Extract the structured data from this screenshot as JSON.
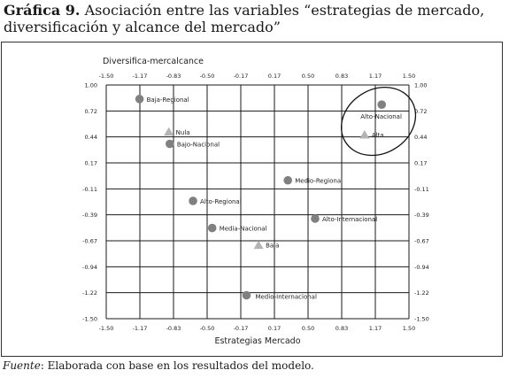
{
  "caption": {
    "prefix": "Gráfica 9.",
    "text": "Asociación entre las variables “estrategias de mercado, diversificación y alcance del mercado”"
  },
  "source": {
    "label": "Fuente",
    "text": ": Elaborada con base en los resultados del modelo."
  },
  "chart_data": {
    "type": "scatter",
    "xlabel": "Estrategias Mercado",
    "ylabel": "Diversifica-mercalcance",
    "xlim": [
      -1.5,
      1.5
    ],
    "ylim": [
      -1.5,
      1.0
    ],
    "x_ticks": [
      "-1.50",
      "-1.17",
      "-0.83",
      "-0.50",
      "-0.17",
      "0.17",
      "0.50",
      "0.83",
      "1.17",
      "1.50"
    ],
    "y_ticks": [
      "1.00",
      "0.72",
      "0.44",
      "0.17",
      "-0.11",
      "-0.39",
      "-0.67",
      "-0.94",
      "-1.22",
      "-1.50"
    ],
    "grid": true,
    "colors": {
      "circle": "#808080",
      "triangle": "#b4b4b4",
      "grid": "#1a1a1a"
    },
    "circles": [
      {
        "label": "Baja-Regional",
        "x": -1.17,
        "y": 0.85
      },
      {
        "label": "Bajo-Nacional",
        "x": -0.87,
        "y": 0.37
      },
      {
        "label": "Alto-Nacional",
        "x": 1.23,
        "y": 0.79
      },
      {
        "label": "Medio-Regional",
        "x": 0.3,
        "y": -0.02
      },
      {
        "label": "Alto-Regional",
        "x": -0.64,
        "y": -0.24
      },
      {
        "label": "Alto-Internacional",
        "x": 0.57,
        "y": -0.43
      },
      {
        "label": "Media-Nacional",
        "x": -0.45,
        "y": -0.53
      },
      {
        "label": "Medio-Internacional",
        "x": -0.11,
        "y": -1.25
      }
    ],
    "triangles": [
      {
        "label": "Nula",
        "x": -0.88,
        "y": 0.5
      },
      {
        "label": "Alta",
        "x": 1.06,
        "y": 0.47
      },
      {
        "label": "Baja",
        "x": 0.01,
        "y": -0.71
      }
    ],
    "annotations": [
      {
        "type": "ellipse",
        "around": [
          "Alto-Nacional",
          "Alta"
        ]
      }
    ]
  }
}
